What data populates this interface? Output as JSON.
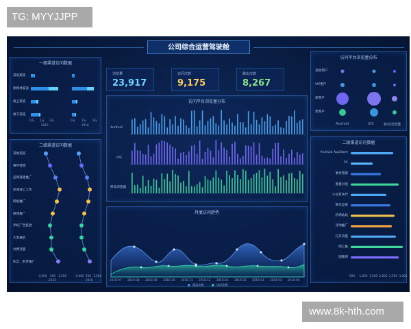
{
  "watermark_top": "TG: MYYJJPP",
  "watermark_bottom": "www.8k-hth.com",
  "title": "公司综合运营驾驶舱",
  "kpis": [
    {
      "label": "浏览量",
      "value": "23,917",
      "color": "#6fd3ff"
    },
    {
      "label": "访问次数",
      "value": "9,175",
      "color": "#ffcf5a"
    },
    {
      "label": "跳出次数",
      "value": "8,267",
      "color": "#8be08a"
    }
  ],
  "panel_level1": {
    "title": "一级渠道访问数据",
    "rows": [
      "其他渠道",
      "新媒体渠道",
      "线上渠道",
      "线下渠道"
    ],
    "ticks_2015": [
      "0万",
      "1万",
      "2万"
    ],
    "ticks_2016": [
      "0万",
      "1万",
      "2万"
    ],
    "year_a": "2015",
    "year_b": "2016"
  },
  "panel_level2": {
    "title": "二级渠道访问数据",
    "rows": [
      "其他渠道",
      "事件营销",
      "品牌基础推广",
      "新闻线上工作",
      "网络推广",
      "微博推广",
      "手机广告投放",
      "大客展机",
      "付费流量",
      "私自、别老推广"
    ],
    "ticks": [
      "-3,000",
      "500",
      "1,500"
    ],
    "year_a": "2015",
    "year_b": "2016"
  },
  "panel_platform": {
    "title": "访问平台浏览量分布",
    "rows": [
      "Android",
      "iOS",
      "移动浏览器"
    ]
  },
  "panel_trend": {
    "title": "月度访问趋势",
    "months": [
      "2016-07",
      "2016-08",
      "2016-09",
      "2016-10",
      "2016-11",
      "2016-12",
      "2016-01",
      "2016-02",
      "2016-03",
      "2016-04",
      "2016-05"
    ],
    "legend": [
      "跳出次数",
      "访问次数"
    ]
  },
  "panel_bubble": {
    "title": "访问平台浏览量分布",
    "rows": [
      "其他用户",
      "VIP用户",
      "新用户",
      "老用户"
    ],
    "cols": [
      "Android",
      "iOS",
      "移动浏览器"
    ]
  },
  "panel_rank": {
    "title": "二级渠道访问数据",
    "rows": [
      "Android AppStore",
      "PC",
      "事件营销",
      "看看对话",
      "小号有关代",
      "微信互联",
      "机场站站",
      "活动推广",
      "打开流量",
      "网上推",
      "图像网"
    ],
    "ticks": [
      "500",
      "1,000",
      "1,500",
      "2,000",
      "2,500",
      "3,000"
    ]
  }
}
